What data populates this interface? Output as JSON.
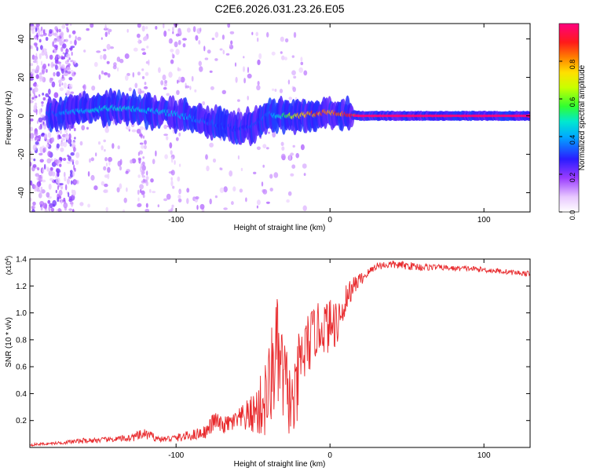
{
  "title": "C2E6.2026.031.23.26.E05",
  "chart_data": [
    {
      "type": "heatmap",
      "xlabel": "Height of straight line (km)",
      "ylabel": "Frequency (Hz)",
      "xlim": [
        -195,
        130
      ],
      "ylim": [
        -50,
        48
      ],
      "xticks": [
        -100,
        0,
        100
      ],
      "xtick_labels": [
        "-100",
        "0",
        "100"
      ],
      "yticks": [
        -40,
        -20,
        0,
        20,
        40
      ],
      "ytick_labels": [
        "-40",
        "-20",
        "0",
        "20",
        "40"
      ],
      "ridge": {
        "x": [
          -180,
          -160,
          -140,
          -120,
          -100,
          -80,
          -60,
          -50,
          -40,
          -30,
          -20,
          -10,
          0,
          10,
          20,
          50,
          100,
          130
        ],
        "freq": [
          1,
          3,
          4,
          3,
          1,
          -3,
          -7,
          -5,
          1,
          0,
          0,
          1,
          2,
          1,
          0,
          0,
          0,
          0
        ],
        "amp": [
          0.35,
          0.45,
          0.5,
          0.45,
          0.45,
          0.35,
          0.3,
          0.35,
          0.35,
          0.55,
          0.8,
          0.9,
          0.9,
          0.95,
          1.0,
          1.0,
          1.0,
          1.0
        ]
      },
      "colorbar": {
        "label": "Normalized spectral amplitude",
        "range": [
          0,
          1
        ],
        "ticks": [
          0,
          0.2,
          0.4,
          0.6,
          0.8
        ],
        "tick_labels": [
          "0.0",
          "0.2",
          "0.4",
          "0.6",
          "0.8"
        ]
      }
    },
    {
      "type": "line",
      "xlabel": "Height of straight line (km)",
      "ylabel": "SNR (10 * v/v)",
      "scale_label": "(x10",
      "scale_exp": "4",
      "scale_close": ")",
      "xlim": [
        -195,
        130
      ],
      "ylim": [
        0,
        1.4
      ],
      "xticks": [
        -100,
        0,
        100
      ],
      "xtick_labels": [
        "-100",
        "0",
        "100"
      ],
      "yticks": [
        0.2,
        0.4,
        0.6,
        0.8,
        1.0,
        1.2,
        1.4
      ],
      "ytick_labels": [
        "0.2",
        "0.4",
        "0.6",
        "0.8",
        "1.0",
        "1.2",
        "1.4"
      ],
      "color": "#e8292c",
      "series": [
        {
          "name": "SNR",
          "x": [
            -195,
            -180,
            -160,
            -140,
            -130,
            -120,
            -110,
            -100,
            -90,
            -80,
            -75,
            -70,
            -60,
            -50,
            -45,
            -40,
            -37,
            -35,
            -30,
            -27,
            -25,
            -22,
            -20,
            -15,
            -10,
            -5,
            0,
            5,
            10,
            15,
            20,
            25,
            30,
            40,
            50,
            60,
            70,
            80,
            90,
            100,
            110,
            120,
            130
          ],
          "y": [
            0.02,
            0.03,
            0.05,
            0.06,
            0.07,
            0.1,
            0.06,
            0.07,
            0.09,
            0.12,
            0.2,
            0.16,
            0.2,
            0.25,
            0.3,
            0.4,
            0.6,
            0.7,
            0.5,
            0.4,
            0.3,
            0.35,
            0.6,
            0.75,
            0.85,
            0.9,
            0.9,
            0.95,
            1.1,
            1.2,
            1.25,
            1.3,
            1.35,
            1.36,
            1.35,
            1.34,
            1.34,
            1.33,
            1.33,
            1.32,
            1.31,
            1.3,
            1.29
          ],
          "noise": [
            0.01,
            0.01,
            0.02,
            0.02,
            0.03,
            0.04,
            0.02,
            0.03,
            0.04,
            0.05,
            0.08,
            0.06,
            0.08,
            0.15,
            0.25,
            0.35,
            0.4,
            0.45,
            0.35,
            0.3,
            0.25,
            0.3,
            0.3,
            0.25,
            0.2,
            0.2,
            0.2,
            0.2,
            0.12,
            0.08,
            0.05,
            0.03,
            0.03,
            0.03,
            0.03,
            0.03,
            0.02,
            0.02,
            0.02,
            0.02,
            0.02,
            0.02,
            0.02
          ]
        }
      ]
    }
  ]
}
